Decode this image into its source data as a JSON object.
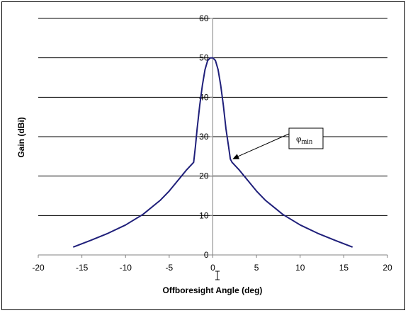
{
  "chart_data": {
    "type": "line",
    "title": "",
    "xlabel": "Offboresight Angle (deg)",
    "ylabel": "Gain (dBi)",
    "xlim": [
      -20,
      20
    ],
    "ylim": [
      0,
      60
    ],
    "x_ticks": [
      -20,
      -15,
      -10,
      -5,
      0,
      5,
      10,
      15,
      20
    ],
    "y_ticks": [
      0,
      10,
      20,
      30,
      40,
      50,
      60
    ],
    "grid": "horizontal",
    "legend": "none",
    "series": [
      {
        "color": "#1f1f7a",
        "x": [
          -16,
          -14,
          -12,
          -10,
          -8,
          -6,
          -5,
          -4,
          -3,
          -2.2,
          -2.0,
          -1.8,
          -1.5,
          -1.2,
          -0.9,
          -0.6,
          -0.3,
          0,
          0.3,
          0.6,
          0.9,
          1.2,
          1.5,
          1.8,
          2.0,
          2.2,
          3,
          4,
          5,
          6,
          8,
          10,
          12,
          14,
          16
        ],
        "y": [
          2,
          3.7,
          5.5,
          7.6,
          10.3,
          13.9,
          16.2,
          18.9,
          21.6,
          23.5,
          27.5,
          32,
          38,
          43,
          47,
          49.3,
          50,
          50,
          49.3,
          47,
          43,
          38,
          32,
          27.5,
          24.3,
          23.5,
          21.6,
          18.9,
          16.2,
          13.9,
          10.3,
          7.6,
          5.5,
          3.7,
          2
        ]
      }
    ],
    "annotations": [
      {
        "text": "φ",
        "subscript": "min",
        "points_to": {
          "x": 2,
          "y": 24.3
        }
      }
    ]
  }
}
